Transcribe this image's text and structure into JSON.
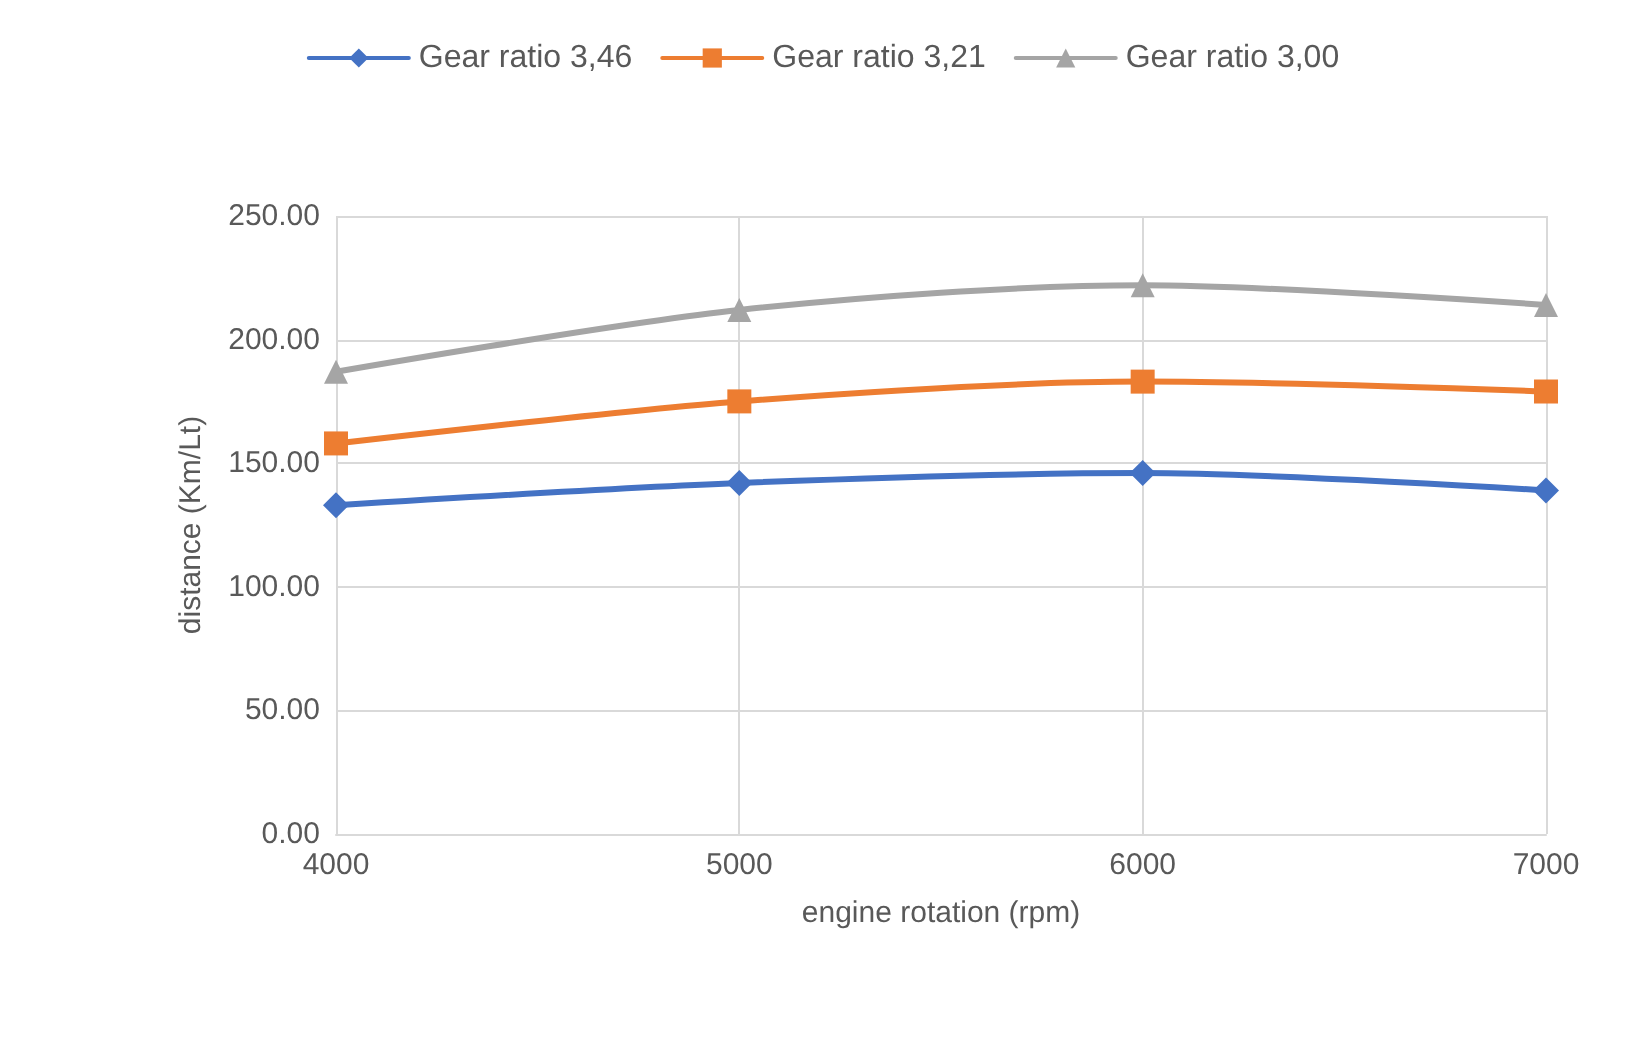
{
  "chart_data": {
    "type": "line",
    "xlabel": "engine rotation (rpm)",
    "ylabel": "distance (Km/Lt)",
    "x": [
      4000,
      5000,
      6000,
      7000
    ],
    "series": [
      {
        "name": "Gear ratio 3,46",
        "color": "#4472c4",
        "marker": "diamond",
        "values": [
          133,
          142,
          146,
          139
        ]
      },
      {
        "name": "Gear ratio 3,21",
        "color": "#ed7d31",
        "marker": "square",
        "values": [
          158,
          175,
          183,
          179
        ]
      },
      {
        "name": "Gear ratio 3,00",
        "color": "#a5a5a5",
        "marker": "triangle",
        "values": [
          187,
          212,
          222,
          214
        ]
      }
    ],
    "xlim": [
      4000,
      7000
    ],
    "xticks": [
      4000,
      5000,
      6000,
      7000
    ],
    "ylim": [
      0,
      250
    ],
    "yticks": [
      {
        "value": 0,
        "label": "0.00"
      },
      {
        "value": 50,
        "label": "50.00"
      },
      {
        "value": 100,
        "label": "100.00"
      },
      {
        "value": 150,
        "label": "150.00"
      },
      {
        "value": 200,
        "label": "200.00"
      },
      {
        "value": 250,
        "label": "250.00"
      }
    ],
    "grid": true,
    "legend": "top"
  }
}
